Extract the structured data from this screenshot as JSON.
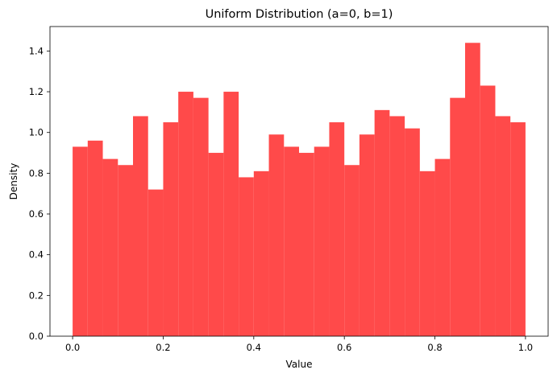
{
  "chart_data": {
    "type": "bar",
    "title": "Uniform Distribution (a=0, b=1)",
    "xlabel": "Value",
    "ylabel": "Density",
    "xlim": [
      -0.05,
      1.05
    ],
    "ylim": [
      0,
      1.52
    ],
    "xticks": [
      "0.0",
      "0.2",
      "0.4",
      "0.6",
      "0.8",
      "1.0"
    ],
    "yticks": [
      "0.0",
      "0.2",
      "0.4",
      "0.6",
      "0.8",
      "1.0",
      "1.2",
      "1.4"
    ],
    "bin_range": [
      0,
      1
    ],
    "values": [
      0.93,
      0.96,
      0.87,
      0.84,
      1.08,
      0.72,
      1.05,
      1.2,
      1.17,
      0.9,
      1.2,
      0.78,
      0.81,
      0.99,
      0.93,
      0.9,
      0.93,
      1.05,
      0.84,
      0.99,
      1.11,
      1.08,
      1.02,
      0.81,
      0.87,
      1.17,
      1.44,
      1.23,
      1.08,
      1.05
    ],
    "bar_color": "#ff4a4a",
    "grid": false,
    "legend": false
  }
}
